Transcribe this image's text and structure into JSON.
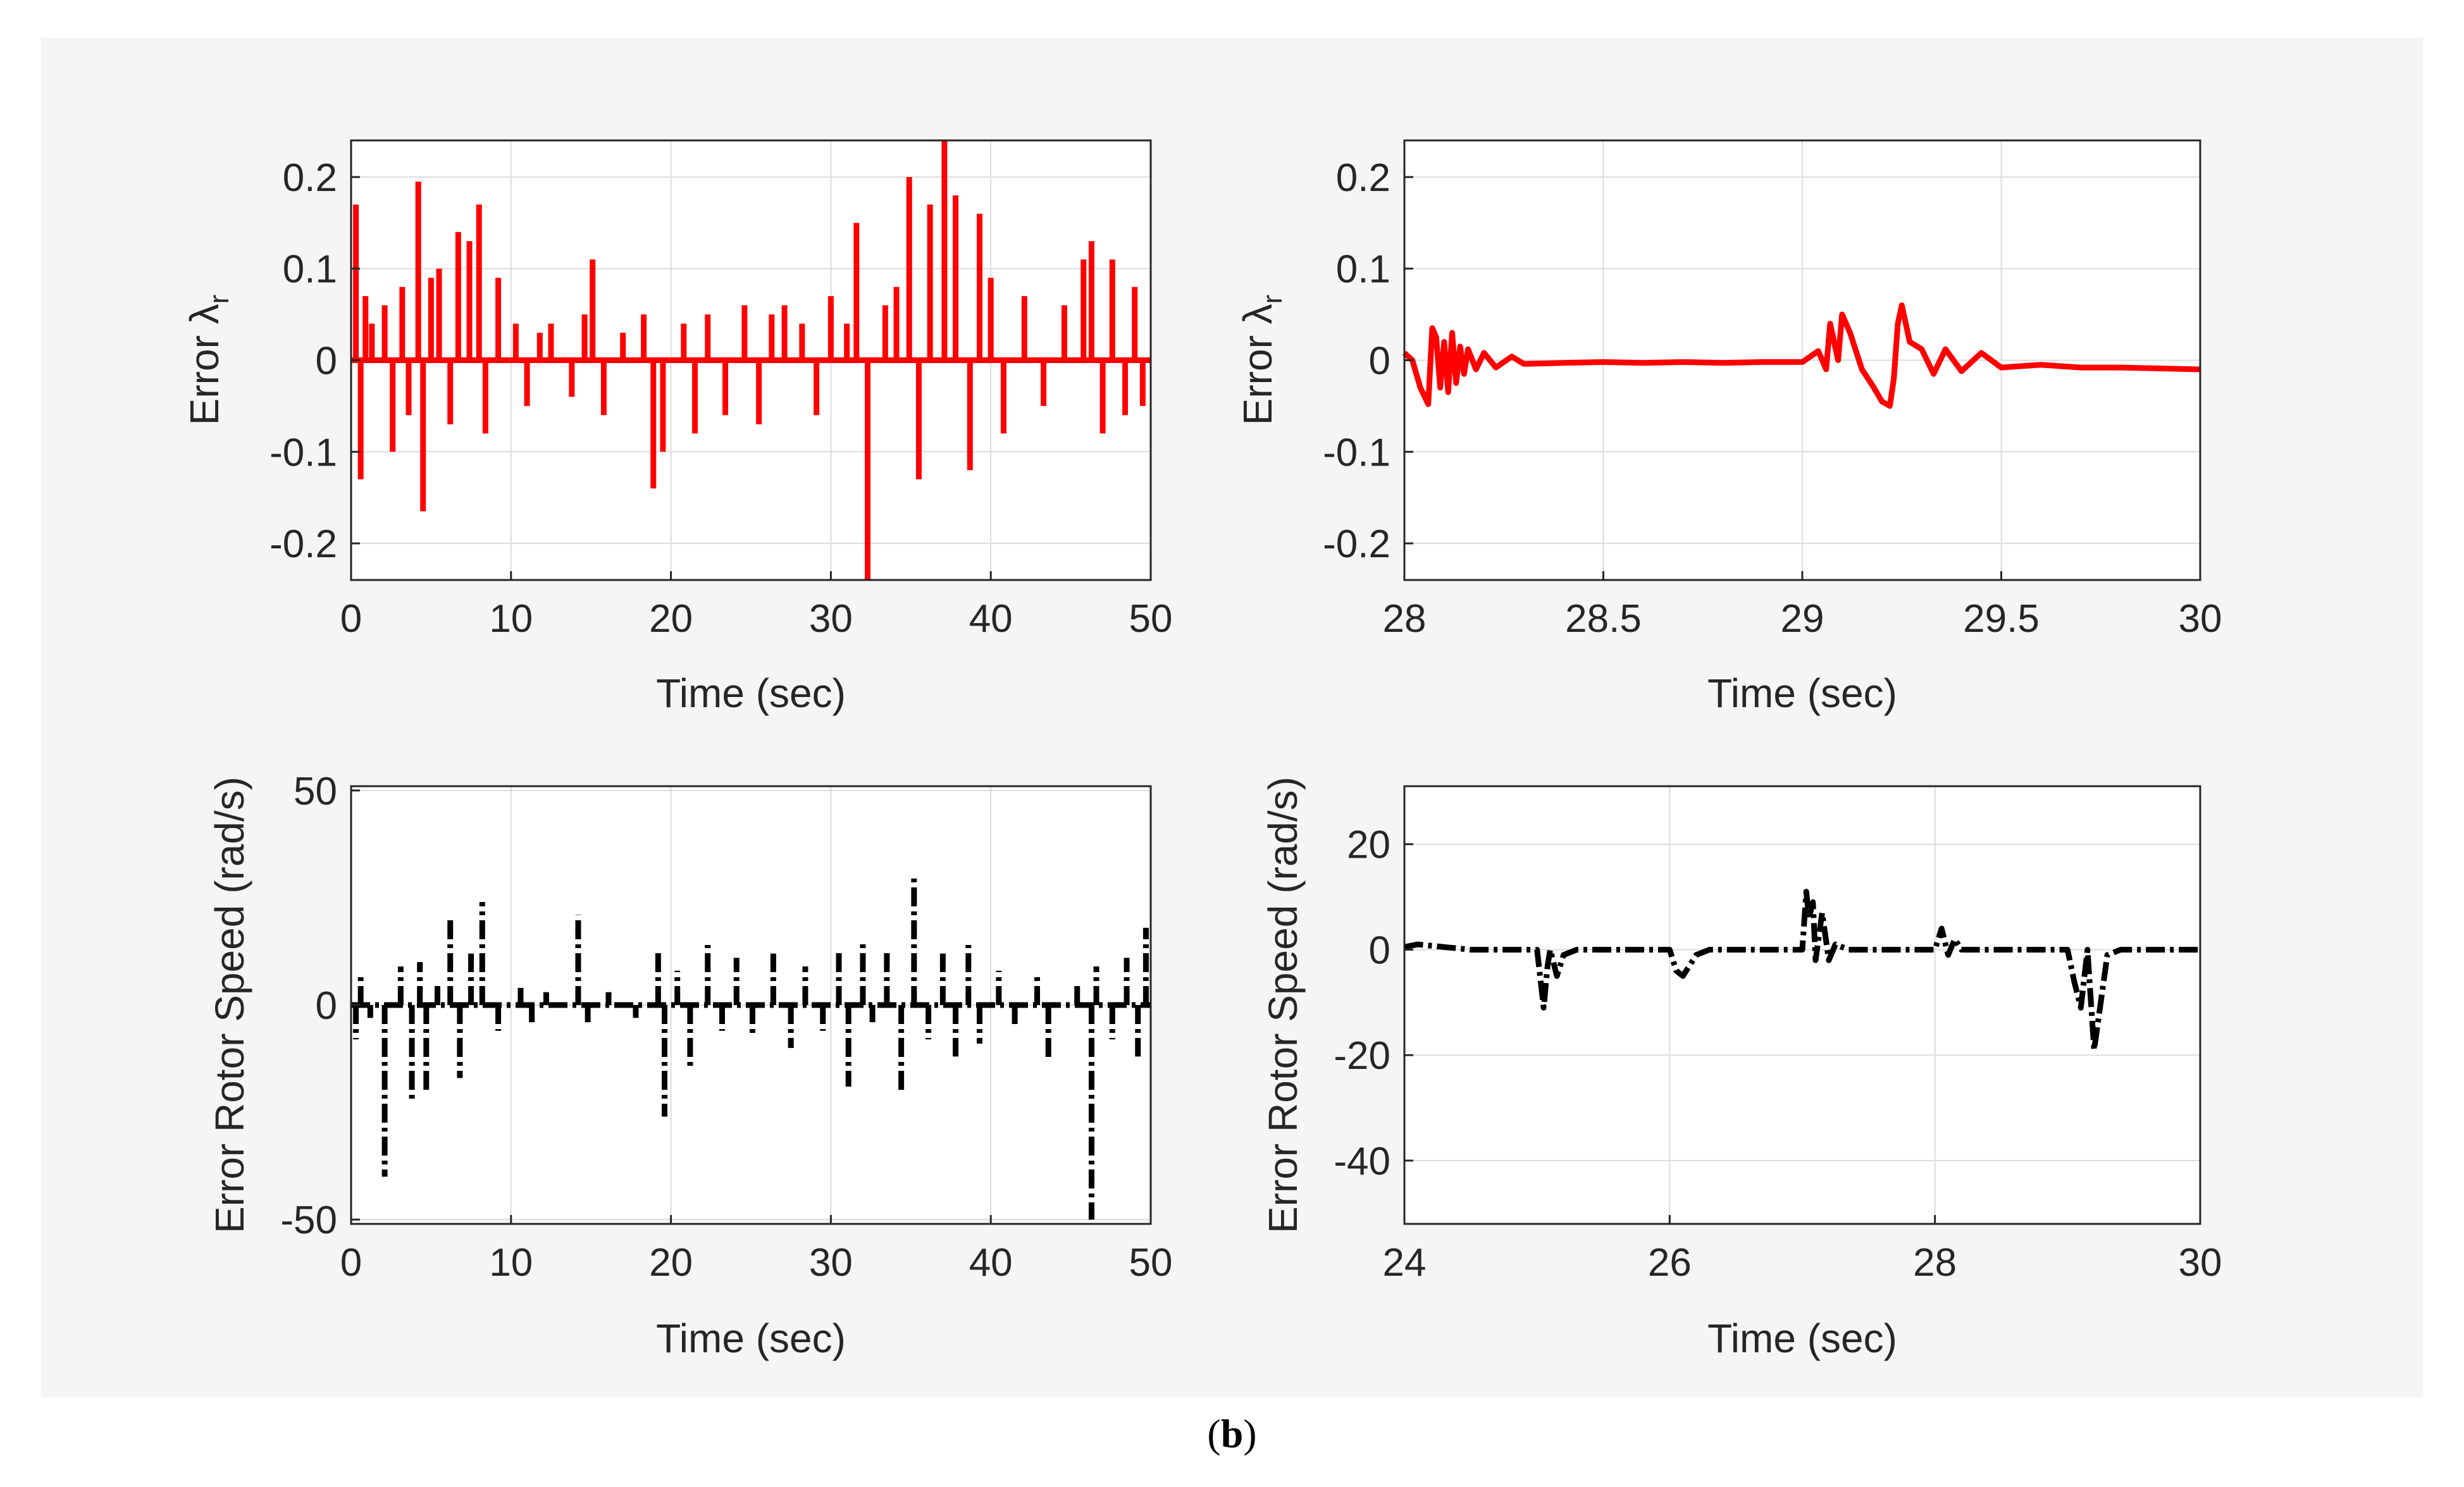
{
  "caption": {
    "open": "(",
    "label": "b",
    "close": ")"
  },
  "colors": {
    "red": "#ff0000",
    "black": "#000000",
    "grid": "#dcdcdc",
    "axis": "#262626",
    "panel_bg": "#f5f5f5"
  },
  "chart_data": [
    {
      "type": "line",
      "panel": "top-left",
      "xlabel": "Time (sec)",
      "ylabel": "Error λr",
      "ylabel_main": "Error λ",
      "ylabel_sub": "r",
      "xlim": [
        0,
        50
      ],
      "ylim": [
        -0.24,
        0.24
      ],
      "xticks": [
        0,
        10,
        20,
        30,
        40,
        50
      ],
      "xtick_labels": [
        "0",
        "10",
        "20",
        "30",
        "40",
        "50"
      ],
      "yticks": [
        -0.2,
        -0.1,
        0,
        0.1,
        0.2
      ],
      "ytick_labels": [
        "-0.2",
        "-0.1",
        "0",
        "0.1",
        "0.2"
      ],
      "grid": true,
      "series": [
        {
          "name": "Error λr",
          "color": "#ff0000",
          "style": "solid",
          "baseline": 0.0,
          "x": [
            0,
            0.3,
            0.6,
            0.9,
            1.3,
            2.1,
            2.6,
            3.2,
            3.6,
            4.2,
            4.5,
            5.0,
            5.5,
            6.2,
            6.7,
            7.4,
            8.0,
            8.4,
            9.2,
            10.3,
            11.0,
            11.8,
            12.5,
            13.8,
            14.6,
            15.1,
            15.8,
            17.0,
            18.3,
            18.9,
            19.5,
            20.8,
            21.5,
            22.3,
            23.4,
            24.6,
            25.5,
            26.3,
            27.1,
            28.2,
            29.1,
            30.0,
            31.0,
            31.6,
            32.3,
            33.4,
            34.1,
            34.9,
            35.5,
            36.2,
            37.1,
            37.8,
            38.7,
            39.3,
            40.0,
            40.8,
            42.1,
            43.3,
            44.6,
            45.8,
            46.3,
            47.0,
            47.6,
            48.4,
            49.0,
            49.5,
            50
          ],
          "y": [
            0.0,
            0.17,
            -0.13,
            0.07,
            0.04,
            0.06,
            -0.1,
            0.08,
            -0.06,
            0.195,
            -0.165,
            0.09,
            0.1,
            -0.07,
            0.14,
            0.13,
            0.17,
            -0.08,
            0.09,
            0.04,
            -0.05,
            0.03,
            0.04,
            -0.04,
            0.05,
            0.11,
            -0.06,
            0.03,
            0.05,
            -0.14,
            -0.1,
            0.04,
            -0.08,
            0.05,
            -0.06,
            0.06,
            -0.07,
            0.05,
            0.06,
            0.04,
            -0.06,
            0.07,
            0.04,
            0.15,
            -0.24,
            0.06,
            0.08,
            0.2,
            -0.13,
            0.17,
            0.24,
            0.18,
            -0.12,
            0.16,
            0.09,
            -0.08,
            0.07,
            -0.05,
            0.06,
            0.11,
            0.13,
            -0.08,
            0.11,
            -0.06,
            0.08,
            -0.05,
            0.0
          ]
        }
      ]
    },
    {
      "type": "line",
      "panel": "top-right",
      "xlabel": "Time (sec)",
      "ylabel": "Error λr",
      "ylabel_main": "Error λ",
      "ylabel_sub": "r",
      "xlim": [
        28,
        30
      ],
      "ylim": [
        -0.24,
        0.24
      ],
      "xticks": [
        28,
        28.5,
        29,
        29.5,
        30
      ],
      "xtick_labels": [
        "28",
        "28.5",
        "29",
        "29.5",
        "30"
      ],
      "yticks": [
        -0.2,
        -0.1,
        0,
        0.1,
        0.2
      ],
      "ytick_labels": [
        "-0.2",
        "-0.1",
        "0",
        "0.1",
        "0.2"
      ],
      "grid": true,
      "series": [
        {
          "name": "Error λr",
          "color": "#ff0000",
          "style": "solid",
          "x": [
            28.0,
            28.02,
            28.04,
            28.06,
            28.07,
            28.08,
            28.09,
            28.1,
            28.11,
            28.12,
            28.13,
            28.14,
            28.15,
            28.16,
            28.18,
            28.2,
            28.23,
            28.27,
            28.3,
            28.4,
            28.5,
            28.6,
            28.7,
            28.8,
            28.9,
            29.0,
            29.04,
            29.06,
            29.07,
            29.08,
            29.09,
            29.1,
            29.12,
            29.15,
            29.18,
            29.2,
            29.22,
            29.23,
            29.24,
            29.25,
            29.27,
            29.3,
            29.33,
            29.36,
            29.4,
            29.45,
            29.5,
            29.6,
            29.7,
            29.8,
            29.9,
            30.0
          ],
          "y": [
            0.008,
            0.0,
            -0.03,
            -0.048,
            0.035,
            0.025,
            -0.03,
            0.02,
            -0.035,
            0.03,
            -0.025,
            0.015,
            -0.015,
            0.012,
            -0.01,
            0.008,
            -0.008,
            0.004,
            -0.004,
            -0.003,
            -0.002,
            -0.003,
            -0.002,
            -0.003,
            -0.002,
            -0.002,
            0.01,
            -0.01,
            0.04,
            0.02,
            0.0,
            0.05,
            0.03,
            -0.01,
            -0.03,
            -0.045,
            -0.05,
            -0.02,
            0.04,
            0.06,
            0.02,
            0.012,
            -0.015,
            0.012,
            -0.012,
            0.008,
            -0.008,
            -0.005,
            -0.008,
            -0.008,
            -0.009,
            -0.01
          ]
        }
      ]
    },
    {
      "type": "line",
      "panel": "bottom-left",
      "xlabel": "Time (sec)",
      "ylabel": "Error Rotor Speed (rad/s)",
      "xlim": [
        0,
        50
      ],
      "ylim": [
        -51,
        51
      ],
      "xticks": [
        0,
        10,
        20,
        30,
        40,
        50
      ],
      "xtick_labels": [
        "0",
        "10",
        "20",
        "30",
        "40",
        "50"
      ],
      "yticks": [
        -50,
        0,
        50
      ],
      "ytick_labels": [
        "-50",
        "0",
        "50"
      ],
      "grid": true,
      "series": [
        {
          "name": "Error Rotor Speed",
          "color": "#000000",
          "style": "dashdot",
          "baseline": 0.0,
          "x": [
            0,
            0.3,
            0.6,
            1.2,
            2.1,
            3.1,
            3.8,
            4.3,
            4.7,
            5.4,
            6.2,
            6.8,
            7.5,
            8.2,
            9.2,
            10.6,
            11.3,
            12.2,
            14.2,
            14.8,
            16.1,
            17.8,
            19.2,
            19.6,
            20.4,
            21.2,
            22.3,
            23.2,
            24.1,
            25.1,
            26.4,
            27.5,
            28.4,
            29.5,
            30.5,
            31.1,
            32.0,
            32.6,
            33.5,
            34.4,
            35.2,
            36.1,
            37.0,
            37.8,
            38.6,
            39.3,
            40.5,
            41.5,
            42.9,
            43.6,
            45.4,
            46.3,
            46.6,
            47.6,
            48.5,
            49.2,
            49.7,
            50
          ],
          "y": [
            0,
            -8,
            7,
            -3,
            -40,
            9,
            -22,
            10,
            -20,
            5,
            20,
            -17,
            12,
            24,
            -6,
            4,
            -4,
            3,
            21,
            -4,
            3,
            -3,
            13,
            -26,
            8,
            -15,
            14,
            -6,
            11,
            -7,
            12,
            -10,
            9,
            -6,
            13,
            -19,
            15,
            -4,
            13,
            -20,
            30,
            -8,
            12,
            -12,
            14,
            -9,
            8,
            -5,
            7,
            -13,
            5,
            -50,
            9,
            -8,
            11,
            -12,
            18,
            0
          ]
        }
      ]
    },
    {
      "type": "line",
      "panel": "bottom-right",
      "xlabel": "Time (sec)",
      "ylabel": "Error Rotor Speed (rad/s)",
      "xlim": [
        24,
        30
      ],
      "ylim": [
        -52,
        31
      ],
      "xticks": [
        24,
        26,
        28,
        30
      ],
      "xtick_labels": [
        "24",
        "26",
        "28",
        "30"
      ],
      "yticks": [
        -40,
        -20,
        0,
        20
      ],
      "ytick_labels": [
        "-40",
        "-20",
        "0",
        "20"
      ],
      "grid": true,
      "series": [
        {
          "name": "Error Rotor Speed",
          "color": "#000000",
          "style": "dashdot",
          "x": [
            24.0,
            24.1,
            24.5,
            25.0,
            25.05,
            25.08,
            25.1,
            25.15,
            25.2,
            25.3,
            25.6,
            26.0,
            26.05,
            26.1,
            26.15,
            26.2,
            26.3,
            26.8,
            27.0,
            27.03,
            27.05,
            27.08,
            27.1,
            27.15,
            27.2,
            27.25,
            27.35,
            27.8,
            28.0,
            28.05,
            28.1,
            28.15,
            28.2,
            28.3,
            28.7,
            29.0,
            29.05,
            29.1,
            29.15,
            29.2,
            29.25,
            29.3,
            29.4,
            29.7,
            30.0
          ],
          "y": [
            0.5,
            1,
            0,
            0,
            -11,
            -3,
            0,
            -5,
            -1,
            0,
            0,
            0,
            -4,
            -5,
            -3,
            -1,
            0,
            0,
            0,
            11,
            6,
            9,
            -2,
            7,
            -2,
            1,
            0,
            0,
            0,
            4,
            -1,
            2,
            0,
            0,
            0,
            0,
            -6,
            -11,
            0,
            -19,
            -10,
            -1,
            0,
            0,
            0
          ]
        }
      ]
    }
  ]
}
